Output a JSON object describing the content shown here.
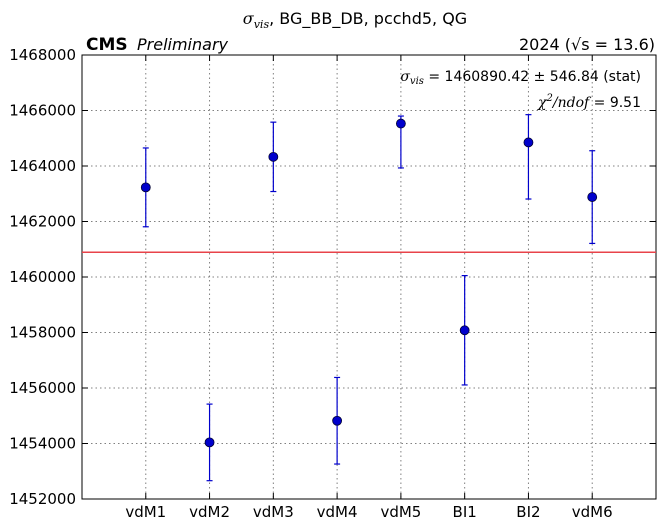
{
  "chart_data": {
    "type": "scatter",
    "title_prefix": "σ",
    "title_sub": "vis",
    "title_rest": ", BG_BB_DB, pcchd5, QG",
    "experiment": "CMS",
    "status": "Preliminary",
    "year_label": "2024",
    "energy_prefix": "(√s = ",
    "energy_value": "13.6",
    "energy_suffix": ")",
    "fit_symbol": "σ",
    "fit_sub": "vis",
    "fit_text": " = 1460890.42 ± 546.84 (stat)",
    "chi_symbol": "χ",
    "chi_sup": "2",
    "chi_rest": "/ndof",
    "chi_value": " = 9.51",
    "fit_value": 1460890.42,
    "categories": [
      "vdM1",
      "vdM2",
      "vdM3",
      "vdM4",
      "vdM5",
      "BI1",
      "BI2",
      "vdM6"
    ],
    "values": [
      1463230,
      1454040,
      1464330,
      1454820,
      1465530,
      1458080,
      1464850,
      1462880
    ],
    "errors_low": [
      1420,
      1380,
      1250,
      1560,
      1600,
      1970,
      2040,
      1670
    ],
    "errors_high": [
      1420,
      1380,
      1250,
      1560,
      270,
      1970,
      1000,
      1670
    ],
    "ylim": [
      1452000,
      1468000
    ],
    "yticks": [
      "1452000",
      "1454000",
      "1456000",
      "1458000",
      "1460000",
      "1462000",
      "1464000",
      "1466000",
      "1468000"
    ],
    "grid": true,
    "colors": {
      "points": "#0000cc",
      "fit_line": "#e8434a",
      "grid": "#808080"
    }
  }
}
